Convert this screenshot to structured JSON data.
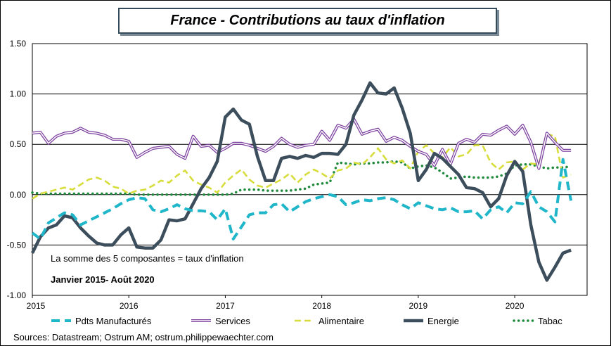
{
  "chart_data": {
    "type": "line",
    "title": "France - Contributions au taux d'inflation",
    "ylim": [
      -1.0,
      1.5
    ],
    "yticks": [
      "1.50",
      "1.00",
      "0.50",
      "0.00",
      "-0.50",
      "-1.00"
    ],
    "ytick_values": [
      1.5,
      1.0,
      0.5,
      0.0,
      -0.5,
      -1.0
    ],
    "xlim": [
      2015.0,
      2020.75
    ],
    "xticks": [
      "2015",
      "2016",
      "2017",
      "2018",
      "2019",
      "2020"
    ],
    "xtick_values": [
      2015,
      2016,
      2017,
      2018,
      2019,
      2020
    ],
    "grid": "horizontal",
    "legend_position": "bottom",
    "annotation_1": "La somme des 5 composantes = taux d'inflation",
    "annotation_2": "Janvier 2015- Août 2020",
    "source": "Sources: Datastream; Ostrum AM; ostrum.philippewaechter.com",
    "series": [
      {
        "name": "Pdts Manufacturés",
        "color": "#1fb6c9",
        "style": "dashed",
        "x": [
          2015.0,
          2015.083,
          2015.167,
          2015.25,
          2015.333,
          2015.417,
          2015.5,
          2015.583,
          2015.667,
          2015.75,
          2015.833,
          2015.917,
          2016.0,
          2016.083,
          2016.167,
          2016.25,
          2016.333,
          2016.417,
          2016.5,
          2016.583,
          2016.667,
          2016.75,
          2016.833,
          2016.917,
          2017.0,
          2017.083,
          2017.167,
          2017.25,
          2017.333,
          2017.417,
          2017.5,
          2017.583,
          2017.667,
          2017.75,
          2017.833,
          2017.917,
          2018.0,
          2018.083,
          2018.167,
          2018.25,
          2018.333,
          2018.417,
          2018.5,
          2018.583,
          2018.667,
          2018.75,
          2018.833,
          2018.917,
          2019.0,
          2019.083,
          2019.167,
          2019.25,
          2019.333,
          2019.417,
          2019.5,
          2019.583,
          2019.667,
          2019.75,
          2019.833,
          2019.917,
          2020.0,
          2020.083,
          2020.167,
          2020.25,
          2020.333,
          2020.417,
          2020.5,
          2020.583
        ],
        "values": [
          -0.38,
          -0.44,
          -0.28,
          -0.23,
          -0.18,
          -0.2,
          -0.3,
          -0.26,
          -0.22,
          -0.18,
          -0.14,
          -0.09,
          -0.05,
          -0.03,
          -0.04,
          -0.15,
          -0.17,
          -0.14,
          -0.1,
          -0.14,
          -0.16,
          -0.16,
          -0.17,
          -0.25,
          -0.14,
          -0.44,
          -0.32,
          -0.2,
          -0.18,
          -0.18,
          -0.1,
          -0.09,
          -0.17,
          -0.12,
          -0.07,
          -0.04,
          -0.02,
          0.0,
          -0.02,
          -0.1,
          -0.08,
          -0.05,
          -0.06,
          -0.04,
          -0.03,
          -0.05,
          -0.1,
          -0.14,
          -0.08,
          -0.11,
          -0.14,
          -0.15,
          -0.13,
          -0.17,
          -0.17,
          -0.16,
          -0.24,
          -0.15,
          -0.12,
          -0.18,
          -0.08,
          -0.09,
          0.03,
          -0.12,
          -0.17,
          -0.27,
          0.35,
          -0.06
        ]
      },
      {
        "name": "Services",
        "color": "#7b3f9e",
        "style": "double",
        "x": [
          2015.0,
          2015.083,
          2015.167,
          2015.25,
          2015.333,
          2015.417,
          2015.5,
          2015.583,
          2015.667,
          2015.75,
          2015.833,
          2015.917,
          2016.0,
          2016.083,
          2016.167,
          2016.25,
          2016.333,
          2016.417,
          2016.5,
          2016.583,
          2016.667,
          2016.75,
          2016.833,
          2016.917,
          2017.0,
          2017.083,
          2017.167,
          2017.25,
          2017.333,
          2017.417,
          2017.5,
          2017.583,
          2017.667,
          2017.75,
          2017.833,
          2017.917,
          2018.0,
          2018.083,
          2018.167,
          2018.25,
          2018.333,
          2018.417,
          2018.5,
          2018.583,
          2018.667,
          2018.75,
          2018.833,
          2018.917,
          2019.0,
          2019.083,
          2019.167,
          2019.25,
          2019.333,
          2019.417,
          2019.5,
          2019.583,
          2019.667,
          2019.75,
          2019.833,
          2019.917,
          2020.0,
          2020.083,
          2020.167,
          2020.25,
          2020.333,
          2020.417,
          2020.5,
          2020.583
        ],
        "values": [
          0.61,
          0.62,
          0.51,
          0.58,
          0.61,
          0.62,
          0.66,
          0.62,
          0.61,
          0.59,
          0.55,
          0.55,
          0.53,
          0.37,
          0.42,
          0.46,
          0.47,
          0.48,
          0.4,
          0.36,
          0.58,
          0.48,
          0.49,
          0.42,
          0.46,
          0.51,
          0.51,
          0.49,
          0.46,
          0.43,
          0.48,
          0.56,
          0.5,
          0.47,
          0.49,
          0.5,
          0.63,
          0.54,
          0.69,
          0.66,
          0.75,
          0.6,
          0.63,
          0.65,
          0.53,
          0.57,
          0.54,
          0.48,
          0.43,
          0.4,
          0.29,
          0.45,
          0.3,
          0.51,
          0.55,
          0.52,
          0.6,
          0.59,
          0.64,
          0.68,
          0.6,
          0.69,
          0.52,
          0.26,
          0.61,
          0.52,
          0.44,
          0.44
        ]
      },
      {
        "name": "Alimentaire",
        "color": "#d7dd3c",
        "style": "dashed",
        "x": [
          2015.0,
          2015.083,
          2015.167,
          2015.25,
          2015.333,
          2015.417,
          2015.5,
          2015.583,
          2015.667,
          2015.75,
          2015.833,
          2015.917,
          2016.0,
          2016.083,
          2016.167,
          2016.25,
          2016.333,
          2016.417,
          2016.5,
          2016.583,
          2016.667,
          2016.75,
          2016.833,
          2016.917,
          2017.0,
          2017.083,
          2017.167,
          2017.25,
          2017.333,
          2017.417,
          2017.5,
          2017.583,
          2017.667,
          2017.75,
          2017.833,
          2017.917,
          2018.0,
          2018.083,
          2018.167,
          2018.25,
          2018.333,
          2018.417,
          2018.5,
          2018.583,
          2018.667,
          2018.75,
          2018.833,
          2018.917,
          2019.0,
          2019.083,
          2019.167,
          2019.25,
          2019.333,
          2019.417,
          2019.5,
          2019.583,
          2019.667,
          2019.75,
          2019.833,
          2019.917,
          2020.0,
          2020.083,
          2020.167,
          2020.25,
          2020.333,
          2020.417,
          2020.5,
          2020.583
        ],
        "values": [
          -0.04,
          0.01,
          0.03,
          0.05,
          0.07,
          0.05,
          0.1,
          0.15,
          0.17,
          0.14,
          0.08,
          0.06,
          0.01,
          0.04,
          0.05,
          0.09,
          0.14,
          0.12,
          0.19,
          0.24,
          0.14,
          0.1,
          0.07,
          0.02,
          0.12,
          0.19,
          0.25,
          0.15,
          0.09,
          0.07,
          0.11,
          0.15,
          0.21,
          0.12,
          0.2,
          0.25,
          0.21,
          0.16,
          0.24,
          0.26,
          0.32,
          0.3,
          0.37,
          0.46,
          0.35,
          0.31,
          0.34,
          0.26,
          0.43,
          0.49,
          0.41,
          0.37,
          0.47,
          0.38,
          0.4,
          0.49,
          0.49,
          0.32,
          0.25,
          0.32,
          0.33,
          0.25,
          0.31,
          0.3,
          0.6,
          0.58,
          0.17,
          0.2
        ]
      },
      {
        "name": "Energie",
        "color": "#3c4d5c",
        "style": "thick",
        "x": [
          2015.0,
          2015.083,
          2015.167,
          2015.25,
          2015.333,
          2015.417,
          2015.5,
          2015.583,
          2015.667,
          2015.75,
          2015.833,
          2015.917,
          2016.0,
          2016.083,
          2016.167,
          2016.25,
          2016.333,
          2016.417,
          2016.5,
          2016.583,
          2016.667,
          2016.75,
          2016.833,
          2016.917,
          2017.0,
          2017.083,
          2017.167,
          2017.25,
          2017.333,
          2017.417,
          2017.5,
          2017.583,
          2017.667,
          2017.75,
          2017.833,
          2017.917,
          2018.0,
          2018.083,
          2018.167,
          2018.25,
          2018.333,
          2018.417,
          2018.5,
          2018.583,
          2018.667,
          2018.75,
          2018.833,
          2018.917,
          2019.0,
          2019.083,
          2019.167,
          2019.25,
          2019.333,
          2019.417,
          2019.5,
          2019.583,
          2019.667,
          2019.75,
          2019.833,
          2019.917,
          2020.0,
          2020.083,
          2020.167,
          2020.25,
          2020.333,
          2020.417,
          2020.5,
          2020.583
        ],
        "values": [
          -0.58,
          -0.42,
          -0.33,
          -0.3,
          -0.21,
          -0.23,
          -0.33,
          -0.41,
          -0.48,
          -0.5,
          -0.5,
          -0.4,
          -0.33,
          -0.52,
          -0.53,
          -0.53,
          -0.45,
          -0.25,
          -0.26,
          -0.24,
          -0.09,
          0.06,
          0.17,
          0.33,
          0.77,
          0.85,
          0.74,
          0.7,
          0.38,
          0.14,
          0.14,
          0.36,
          0.38,
          0.36,
          0.39,
          0.37,
          0.41,
          0.41,
          0.4,
          0.5,
          0.79,
          0.94,
          1.11,
          1.01,
          1.0,
          1.06,
          0.86,
          0.61,
          0.14,
          0.25,
          0.41,
          0.36,
          0.28,
          0.2,
          0.07,
          0.06,
          0.02,
          -0.12,
          -0.04,
          0.19,
          0.33,
          0.23,
          -0.3,
          -0.67,
          -0.85,
          -0.72,
          -0.58,
          -0.55
        ]
      },
      {
        "name": "Tabac",
        "color": "#1f8a3c",
        "style": "dotted",
        "x": [
          2015.0,
          2015.083,
          2015.167,
          2015.25,
          2015.333,
          2015.417,
          2015.5,
          2015.583,
          2015.667,
          2015.75,
          2015.833,
          2015.917,
          2016.0,
          2016.083,
          2016.167,
          2016.25,
          2016.333,
          2016.417,
          2016.5,
          2016.583,
          2016.667,
          2016.75,
          2016.833,
          2016.917,
          2017.0,
          2017.083,
          2017.167,
          2017.25,
          2017.333,
          2017.417,
          2017.5,
          2017.583,
          2017.667,
          2017.75,
          2017.833,
          2017.917,
          2018.0,
          2018.083,
          2018.167,
          2018.25,
          2018.333,
          2018.417,
          2018.5,
          2018.583,
          2018.667,
          2018.75,
          2018.833,
          2018.917,
          2019.0,
          2019.083,
          2019.167,
          2019.25,
          2019.333,
          2019.417,
          2019.5,
          2019.583,
          2019.667,
          2019.75,
          2019.833,
          2019.917,
          2020.0,
          2020.083,
          2020.167,
          2020.25,
          2020.333,
          2020.417,
          2020.5,
          2020.583
        ],
        "values": [
          0.02,
          0.01,
          0.01,
          0.01,
          0.01,
          0.01,
          0.01,
          0.01,
          0.01,
          0.01,
          0.01,
          0.01,
          0.01,
          0.0,
          0.0,
          0.0,
          0.0,
          0.0,
          0.0,
          0.0,
          0.0,
          0.0,
          0.0,
          0.0,
          0.0,
          0.01,
          0.05,
          0.05,
          0.05,
          0.04,
          0.04,
          0.04,
          0.04,
          0.05,
          0.06,
          0.1,
          0.11,
          0.12,
          0.32,
          0.31,
          0.3,
          0.31,
          0.31,
          0.32,
          0.32,
          0.33,
          0.32,
          0.26,
          0.28,
          0.29,
          0.27,
          0.22,
          0.16,
          0.17,
          0.18,
          0.17,
          0.17,
          0.17,
          0.18,
          0.21,
          0.29,
          0.3,
          0.3,
          0.28,
          0.26,
          0.27,
          0.27,
          0.28
        ]
      }
    ]
  }
}
